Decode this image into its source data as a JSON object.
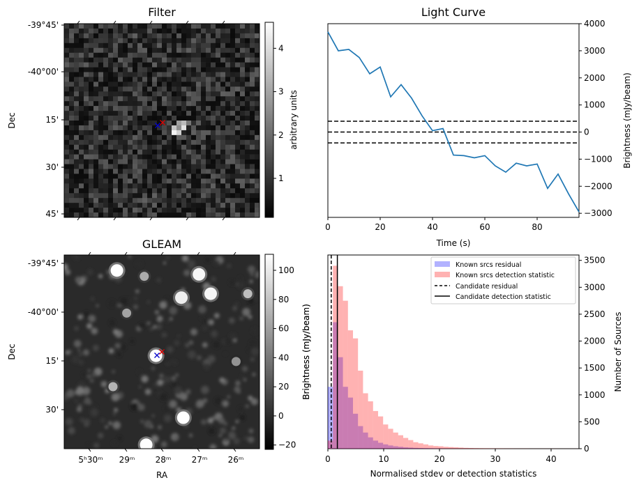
{
  "chart_data": [
    {
      "type": "heatmap",
      "title": "Filter",
      "ylabel": "Dec",
      "y_ticks": [
        "-39°45'",
        "-40°00'",
        "15'",
        "30'",
        "45'"
      ],
      "colorbar": {
        "label": "arbitrary units",
        "ticks": [
          "1",
          "2",
          "3",
          "4"
        ],
        "range": [
          0.1,
          4.6
        ],
        "cmap": "gray"
      },
      "markers": [
        {
          "symbol": "x",
          "color": "#0000cc"
        },
        {
          "symbol": "x",
          "color": "#dd0000"
        }
      ],
      "bright_pixels": [
        {
          "col": 22,
          "row": 22,
          "value": 4.4
        },
        {
          "col": 22,
          "row": 21,
          "value": 3.6
        },
        {
          "col": 23,
          "row": 22,
          "value": 3.8
        },
        {
          "col": 23,
          "row": 21,
          "value": 2.6
        },
        {
          "col": 24,
          "row": 20,
          "value": 3.4
        },
        {
          "col": 24,
          "row": 21,
          "value": 4.1
        },
        {
          "col": 23,
          "row": 20,
          "value": 2.9
        },
        {
          "col": 25,
          "row": 20,
          "value": 2.2
        }
      ]
    },
    {
      "type": "line",
      "title": "Light Curve",
      "xlabel": "Time (s)",
      "ylabel": "Brightness (mJy/beam)",
      "xlim": [
        0,
        96
      ],
      "ylim": [
        -3150,
        4000
      ],
      "x_ticks": [
        "0",
        "20",
        "40",
        "60",
        "80"
      ],
      "y_ticks": [
        "-3000",
        "-2000",
        "-1000",
        "0",
        "1000",
        "2000",
        "3000",
        "4000"
      ],
      "series": [
        {
          "color": "#1f77b4",
          "x": [
            0,
            4,
            8,
            12,
            16,
            20,
            24,
            28,
            32,
            36,
            40,
            44,
            48,
            52,
            56,
            60,
            64,
            68,
            72,
            76,
            80,
            84,
            88,
            92,
            96
          ],
          "y": [
            3700,
            3000,
            3050,
            2750,
            2150,
            2400,
            1300,
            1750,
            1250,
            600,
            50,
            130,
            -850,
            -870,
            -950,
            -870,
            -1250,
            -1480,
            -1150,
            -1250,
            -1180,
            -2080,
            -1550,
            -2280,
            -2950
          ]
        }
      ],
      "hlines": [
        400,
        0,
        -400
      ]
    },
    {
      "type": "heatmap",
      "title": "GLEAM",
      "xlabel": "RA",
      "ylabel": "Dec",
      "x_ticks": [
        "5ʰ30ᵐ",
        "29ᵐ",
        "28ᵐ",
        "27ᵐ",
        "26ᵐ"
      ],
      "y_ticks": [
        "-39°45'",
        "-40°00'",
        "15'",
        "30'"
      ],
      "colorbar": {
        "label": "Brightness (mJy/beam)",
        "ticks": [
          "-20",
          "0",
          "20",
          "40",
          "60",
          "80",
          "100"
        ],
        "range": [
          -23,
          111
        ],
        "cmap": "gray"
      },
      "markers": [
        {
          "symbol": "x",
          "color": "#0000cc"
        },
        {
          "symbol": "x",
          "color": "#dd0000"
        }
      ],
      "sources": [
        {
          "ra_frac": 0.27,
          "dec_frac": 0.08,
          "level": 1.0
        },
        {
          "ra_frac": 0.41,
          "dec_frac": 0.11,
          "level": 0.5
        },
        {
          "ra_frac": 0.69,
          "dec_frac": 0.1,
          "level": 0.95
        },
        {
          "ra_frac": 0.75,
          "dec_frac": 0.2,
          "level": 0.95
        },
        {
          "ra_frac": 0.6,
          "dec_frac": 0.22,
          "level": 0.9
        },
        {
          "ra_frac": 0.94,
          "dec_frac": 0.2,
          "level": 0.6
        },
        {
          "ra_frac": 0.32,
          "dec_frac": 0.3,
          "level": 0.45
        },
        {
          "ra_frac": 0.47,
          "dec_frac": 0.52,
          "level": 1.0
        },
        {
          "ra_frac": 0.25,
          "dec_frac": 0.68,
          "level": 0.55
        },
        {
          "ra_frac": 0.61,
          "dec_frac": 0.84,
          "level": 1.0
        },
        {
          "ra_frac": 0.42,
          "dec_frac": 0.98,
          "level": 1.0
        },
        {
          "ra_frac": 0.88,
          "dec_frac": 0.55,
          "level": 0.35
        }
      ]
    },
    {
      "type": "bar",
      "xlabel": "Normalised stdev or detection statistics",
      "ylabel": "Brightness (mJy/beam)",
      "ylabel_right": "Number of Sources",
      "xlim": [
        0,
        45
      ],
      "ylim": [
        0,
        3600
      ],
      "x_ticks": [
        "0",
        "10",
        "20",
        "30",
        "40"
      ],
      "y_ticks": [
        "0",
        "500",
        "1000",
        "1500",
        "2000",
        "2500",
        "3000",
        "3500"
      ],
      "legend_position": "top-right",
      "bin_width": 0.9,
      "series": [
        {
          "name": "Known srcs residual",
          "color": "#0000ff",
          "opacity": 0.3,
          "bin_start": 0,
          "values": [
            1150,
            2350,
            1700,
            1150,
            950,
            650,
            420,
            300,
            210,
            150,
            110,
            80,
            60,
            45,
            35,
            25,
            20,
            15,
            12,
            10,
            8,
            6,
            5,
            4,
            3,
            3,
            2,
            2,
            1,
            1
          ]
        },
        {
          "name": "Known srcs detection statistic",
          "color": "#ff0000",
          "opacity": 0.3,
          "bin_start": 0,
          "values": [
            150,
            3400,
            3020,
            2750,
            2200,
            2050,
            1450,
            1030,
            880,
            700,
            600,
            450,
            370,
            300,
            250,
            200,
            160,
            120,
            100,
            80,
            60,
            50,
            45,
            35,
            30,
            25,
            20,
            15,
            12,
            10,
            8,
            7,
            6,
            5,
            5,
            4,
            4,
            3,
            3,
            3,
            2,
            2,
            2,
            2,
            2,
            2,
            1,
            1,
            1,
            1
          ]
        }
      ],
      "vlines": [
        {
          "name": "Candidate residual",
          "x": 0.6,
          "style": "dashed"
        },
        {
          "name": "Candidate detection statistic",
          "x": 1.7,
          "style": "solid"
        }
      ]
    }
  ]
}
